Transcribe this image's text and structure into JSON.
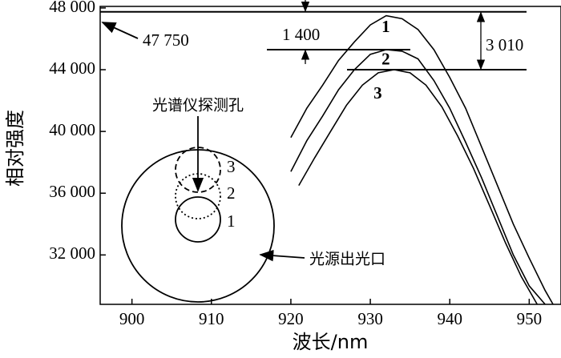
{
  "chart_data": {
    "type": "line",
    "x_label": "波长/nm",
    "y_label": "相对强度",
    "xlim": [
      896,
      954
    ],
    "ylim": [
      28800,
      48100
    ],
    "xticks": [
      900,
      910,
      920,
      930,
      940,
      950
    ],
    "yticks": [
      {
        "value": 32000,
        "label": "32 000"
      },
      {
        "value": 36000,
        "label": "36 000"
      },
      {
        "value": 40000,
        "label": "40 000"
      },
      {
        "value": 44000,
        "label": "44 000"
      },
      {
        "value": 48000,
        "label": "48 000"
      }
    ],
    "series": [
      {
        "name": "1",
        "color": "#000000",
        "x": [
          920,
          922,
          924,
          926,
          928,
          930,
          932,
          934,
          936,
          938,
          940,
          942,
          944,
          946,
          948,
          950,
          952,
          953
        ],
        "values": [
          39600,
          41500,
          43000,
          44600,
          45800,
          46900,
          47500,
          47300,
          46600,
          45300,
          43500,
          41500,
          39000,
          36500,
          34000,
          31800,
          29700,
          28800
        ]
      },
      {
        "name": "2",
        "color": "#000000",
        "x": [
          920,
          922,
          924,
          926,
          928,
          930,
          932,
          934,
          936,
          938,
          940,
          942,
          944,
          946,
          948,
          950,
          952
        ],
        "values": [
          37400,
          39400,
          41000,
          42700,
          44000,
          45000,
          45300,
          45200,
          44700,
          43300,
          41500,
          39300,
          37000,
          34500,
          32000,
          30000,
          28800
        ]
      },
      {
        "name": "3",
        "color": "#000000",
        "x": [
          921,
          923,
          925,
          927,
          929,
          931,
          933,
          935,
          937,
          939,
          941,
          943,
          945,
          947,
          949,
          951
        ],
        "values": [
          36500,
          38300,
          40000,
          41700,
          43000,
          43800,
          44000,
          43800,
          43000,
          41600,
          39700,
          37600,
          35200,
          32800,
          30600,
          28800
        ]
      }
    ],
    "hlines": [
      47750,
      45300,
      44000
    ],
    "annotations": {
      "peak": "47 750",
      "diff_2": "1 400",
      "diff_3": "3 010",
      "detector": "光谱仪探测孔",
      "source": "光源出光口",
      "inset_1": "1",
      "inset_2": "2",
      "inset_3": "3"
    }
  }
}
